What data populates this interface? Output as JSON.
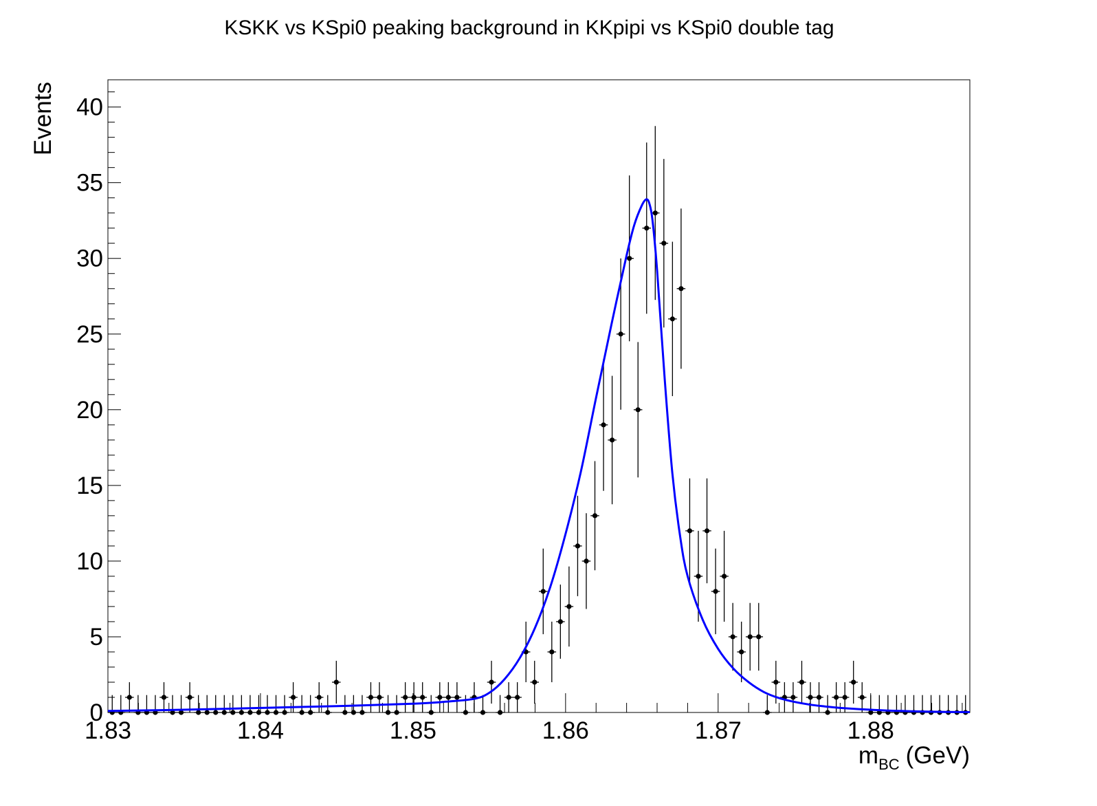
{
  "chart_data": {
    "type": "scatter",
    "title": "KSKK vs KSpi0 peaking background in KKpipi vs KSpi0 double tag",
    "xlabel": "m",
    "xlabel_sub": "BC",
    "xlabel_unit": "(GeV)",
    "ylabel": "Events",
    "xlim": [
      1.83,
      1.8865
    ],
    "ylim": [
      0,
      41.8
    ],
    "x_ticks": [
      1.83,
      1.84,
      1.85,
      1.86,
      1.87,
      1.88
    ],
    "x_tick_labels": [
      "1.83",
      "1.84",
      "1.85",
      "1.86",
      "1.87",
      "1.88"
    ],
    "y_ticks": [
      0,
      5,
      10,
      15,
      20,
      25,
      30,
      35,
      40
    ],
    "y_tick_labels": [
      "0",
      "5",
      "10",
      "15",
      "20",
      "25",
      "30",
      "35",
      "40"
    ],
    "bin_width": 0.000565,
    "grid": false,
    "series": [
      {
        "kind": "data-points-with-errors",
        "x_start": 1.8302825,
        "values": [
          0,
          0,
          1,
          0,
          0,
          0,
          1,
          0,
          0,
          1,
          0,
          0,
          0,
          0,
          0,
          0,
          0,
          0,
          0,
          0,
          0,
          1,
          0,
          0,
          1,
          0,
          2,
          0,
          0,
          0,
          1,
          1,
          0,
          0,
          1,
          1,
          1,
          0,
          1,
          1,
          1,
          0,
          1,
          0,
          2,
          0,
          1,
          1,
          4,
          2,
          8,
          4,
          6,
          7,
          11,
          10,
          13,
          19,
          18,
          25,
          30,
          20,
          32,
          33,
          31,
          26,
          28,
          12,
          9,
          12,
          8,
          9,
          5,
          4,
          5,
          5,
          0,
          2,
          1,
          1,
          2,
          1,
          1,
          0,
          1,
          1,
          2,
          1,
          0,
          0,
          0,
          0,
          0,
          0,
          0,
          0,
          0,
          0,
          0,
          0
        ],
        "color": "#000000"
      },
      {
        "kind": "fit-curve",
        "x": [
          1.83,
          1.835,
          1.84,
          1.845,
          1.85,
          1.852,
          1.854,
          1.855,
          1.856,
          1.857,
          1.858,
          1.859,
          1.86,
          1.861,
          1.862,
          1.863,
          1.864,
          1.8645,
          1.865,
          1.8653,
          1.8655,
          1.8657,
          1.866,
          1.8665,
          1.867,
          1.8675,
          1.868,
          1.869,
          1.87,
          1.871,
          1.872,
          1.873,
          1.874,
          1.875,
          1.876,
          1.877,
          1.878,
          1.88,
          1.882,
          1.884,
          1.8865
        ],
        "y": [
          0.1,
          0.18,
          0.3,
          0.42,
          0.58,
          0.7,
          0.9,
          1.3,
          2.2,
          3.6,
          5.6,
          8.3,
          11.8,
          15.9,
          20.8,
          25.6,
          30.2,
          32.2,
          33.5,
          33.9,
          33.6,
          32.5,
          29.2,
          22.0,
          15.8,
          11.7,
          9.0,
          6.1,
          4.2,
          2.9,
          2.0,
          1.35,
          0.95,
          0.7,
          0.52,
          0.4,
          0.3,
          0.18,
          0.1,
          0.05,
          0.02
        ],
        "color": "#0000ff"
      }
    ]
  }
}
